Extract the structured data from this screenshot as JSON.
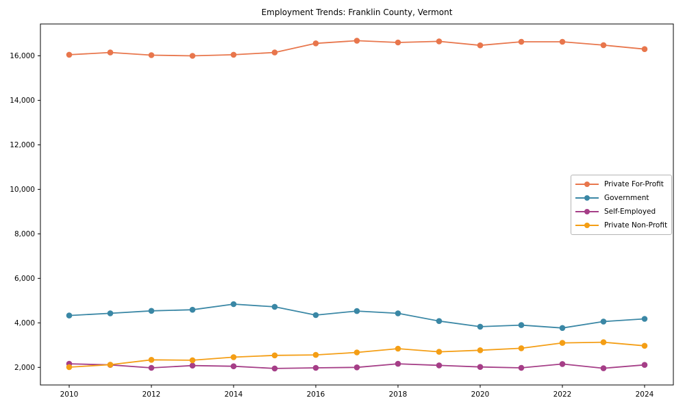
{
  "page": {
    "background": "#ffffff",
    "text_color": "#000000",
    "axis_color": "#000000",
    "legend_border_color": "#b4b4b4"
  },
  "chart_data": {
    "type": "line",
    "title": "Employment Trends: Franklin County, Vermont",
    "xlabel": "",
    "ylabel": "",
    "grid": false,
    "marker": "circle",
    "legend_position": "center right",
    "x": [
      2010,
      2011,
      2012,
      2013,
      2014,
      2015,
      2016,
      2017,
      2018,
      2019,
      2020,
      2021,
      2022,
      2023,
      2024
    ],
    "series": [
      {
        "name": "Private For-Profit",
        "color": "#e8764c",
        "values": [
          16050,
          16150,
          16030,
          16000,
          16050,
          16150,
          16560,
          16680,
          16600,
          16650,
          16470,
          16630,
          16630,
          16480,
          16300
        ]
      },
      {
        "name": "Government",
        "color": "#3a87a5",
        "values": [
          4330,
          4430,
          4540,
          4590,
          4840,
          4720,
          4350,
          4530,
          4430,
          4080,
          3830,
          3900,
          3770,
          4060,
          4180
        ]
      },
      {
        "name": "Self-Employed",
        "color": "#a53e87",
        "values": [
          2160,
          2110,
          1980,
          2080,
          2050,
          1950,
          1980,
          2000,
          2160,
          2090,
          2020,
          1980,
          2150,
          1960,
          2110
        ]
      },
      {
        "name": "Private Non-Profit",
        "color": "#f49e15",
        "values": [
          2010,
          2120,
          2340,
          2320,
          2460,
          2540,
          2560,
          2670,
          2840,
          2700,
          2770,
          2860,
          3100,
          3130,
          2970
        ]
      }
    ],
    "xticks": [
      2010,
      2012,
      2014,
      2016,
      2018,
      2020,
      2022,
      2024
    ],
    "xtick_labels": [
      "2010",
      "2012",
      "2014",
      "2016",
      "2018",
      "2020",
      "2022",
      "2024"
    ],
    "yticks": [
      2000,
      4000,
      6000,
      8000,
      10000,
      12000,
      14000,
      16000
    ],
    "ytick_labels": [
      "2,000",
      "4,000",
      "6,000",
      "8,000",
      "10,000",
      "12,000",
      "14,000",
      "16,000"
    ],
    "xlim": [
      2009.3,
      2024.7
    ],
    "ylim": [
      1209,
      17431
    ]
  }
}
